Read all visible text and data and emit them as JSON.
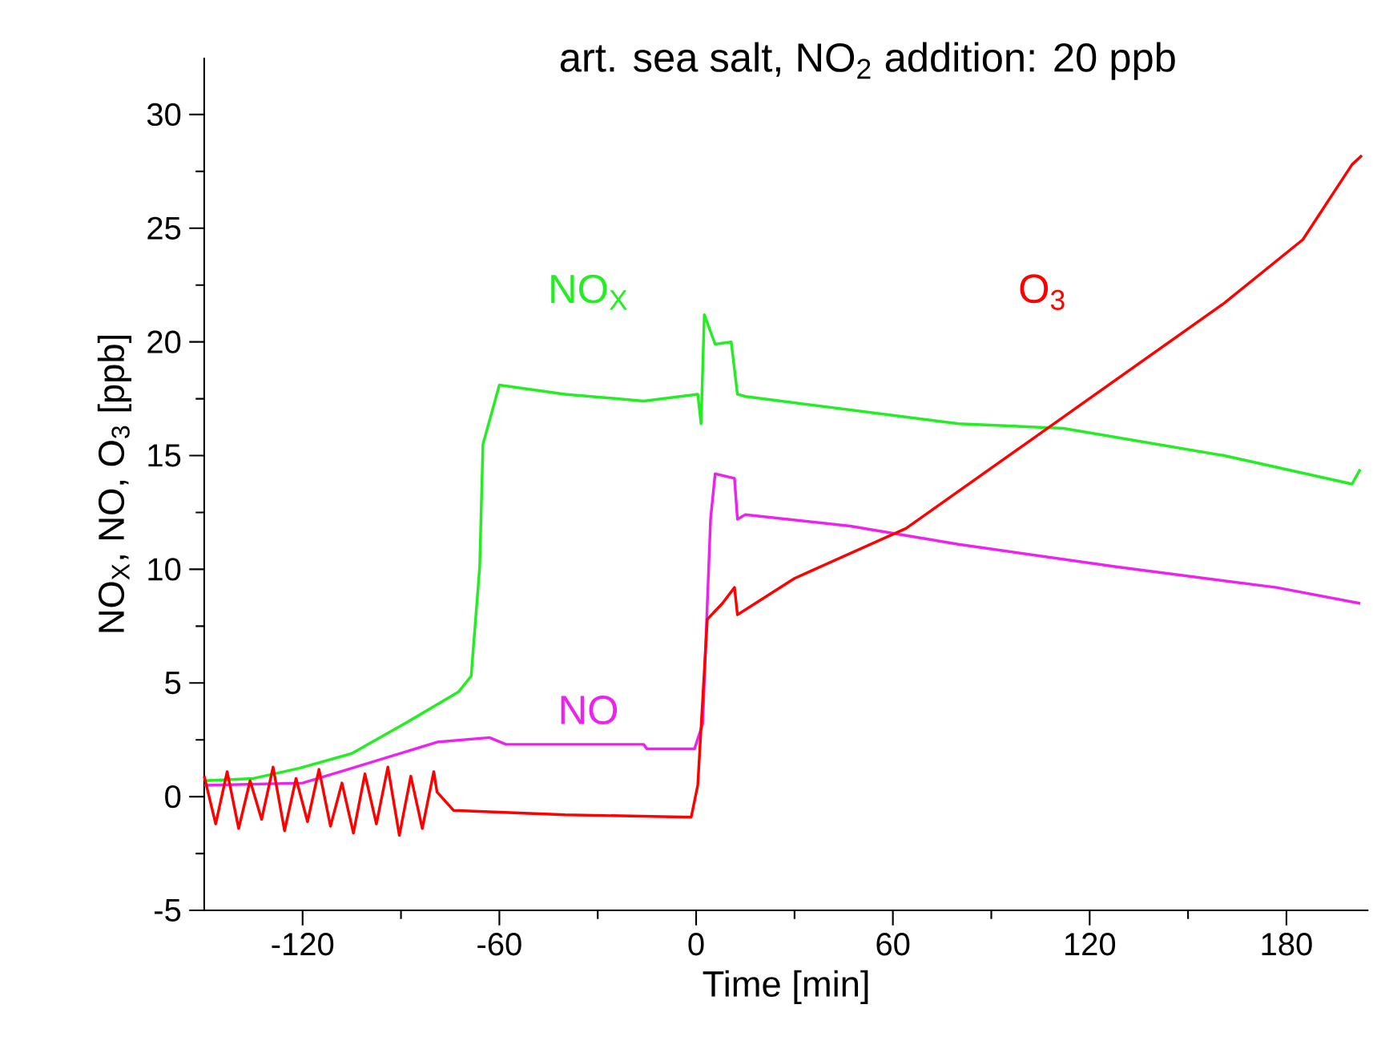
{
  "chart_data": {
    "type": "line",
    "title": "art. sea salt, NO$_{2}$ addition: 20 ppb",
    "xlabel": "Time [min]",
    "ylabel": "NO$_{X}$, NO, O$_{3}$ [ppb]",
    "xlim": [
      -150,
      205
    ],
    "ylim": [
      -5,
      32.5
    ],
    "xticks": [
      -120,
      -60,
      0,
      60,
      120,
      180
    ],
    "yticks": [
      -5,
      0,
      5,
      10,
      15,
      20,
      25,
      30
    ],
    "grid": false,
    "legend": false,
    "marker": "none",
    "line_style": "solid",
    "series": [
      {
        "name": "NO$_{X}$",
        "color": "#22ee22",
        "x": [
          -150,
          -135,
          -121,
          -105,
          -89,
          -72.5,
          -68.6,
          -66,
          -65,
          -60,
          -40,
          -16,
          0.5,
          1.5,
          2.5,
          5.8,
          10.7,
          12.6,
          15,
          80,
          112,
          161,
          200,
          202.5
        ],
        "values": [
          0.7,
          0.8,
          1.25,
          1.9,
          3.2,
          4.6,
          5.3,
          10.1,
          15.5,
          18.1,
          17.7,
          17.4,
          17.7,
          16.4,
          21.2,
          19.9,
          20,
          17.7,
          17.6,
          16.4,
          16.2,
          15,
          13.75,
          14.4
        ]
      },
      {
        "name": "NO",
        "color": "#ee22ee",
        "x": [
          -150,
          -120,
          -105,
          -79,
          -63,
          -58,
          -16,
          -15,
          -0.5,
          2,
          4.4,
          5.8,
          11.7,
          12.6,
          15,
          47,
          80,
          128.5,
          177,
          202.5
        ],
        "values": [
          0.5,
          0.6,
          1.25,
          2.4,
          2.6,
          2.3,
          2.3,
          2.1,
          2.1,
          3.2,
          12.2,
          14.2,
          14,
          12.2,
          12.4,
          11.9,
          11.1,
          10.1,
          9.2,
          8.5
        ]
      },
      {
        "name": "O$_{3}$",
        "color": "#ff0000",
        "x": [
          -150,
          -146.5,
          -143,
          -139.5,
          -136,
          -132.5,
          -129,
          -125.5,
          -122,
          -118.5,
          -115,
          -111.5,
          -108,
          -104.5,
          -101,
          -97.5,
          -94,
          -90.5,
          -87,
          -83.5,
          -80,
          -79,
          -74,
          -40,
          -1.5,
          0.5,
          3.4,
          8,
          11.7,
          12.6,
          30,
          64,
          112,
          161,
          185,
          200,
          203
        ],
        "values": [
          0.9,
          -1.2,
          1.1,
          -1.4,
          0.7,
          -1,
          1.3,
          -1.5,
          0.8,
          -1.1,
          1.2,
          -1.3,
          0.6,
          -1.6,
          1,
          -1.2,
          1.3,
          -1.7,
          0.9,
          -1.4,
          1.1,
          0.2,
          -0.6,
          -0.8,
          -0.9,
          0.5,
          7.8,
          8.5,
          9.2,
          8,
          9.6,
          11.8,
          16.7,
          21.7,
          24.5,
          27.8,
          28.2
        ]
      }
    ]
  }
}
